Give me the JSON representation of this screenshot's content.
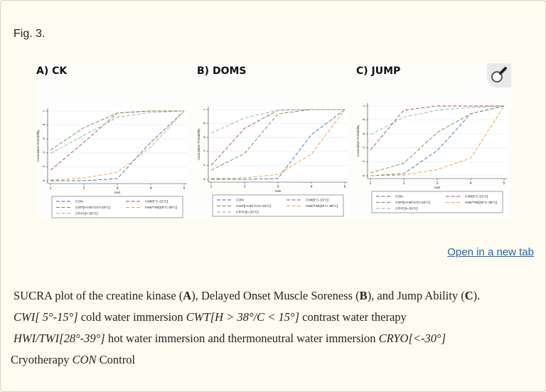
{
  "figure_label": "Fig. 3.",
  "open_link": "Open in a new tab",
  "caption": {
    "p1": "SUCRA plot of the creatine kinase (",
    "A": "A",
    "p2": "), Delayed Onset Muscle Soreness (",
    "B": "B",
    "p3": "), and Jump Ability (",
    "C": "C",
    "p4": ").",
    "i1": "CWI[ 5°-15°]",
    "t1": " cold water immersion ",
    "i2": "CWT[H > 38°/C < 15°]",
    "t2": " contrast water therapy ",
    "i3": "HWI/TWI[28°-39°]",
    "t3": " hot water immersion and thermoneutral water immersion ",
    "i4": "CRYO[<-30°]",
    "t4": " Cryotherapy ",
    "i5": "CON",
    "t5": " Control"
  },
  "zoom_icon": "magnifier-icon",
  "chart_data": [
    {
      "type": "line",
      "title": "A) CK",
      "xlabel": "rank",
      "ylabel": "Cumulative Probability",
      "x": [
        1,
        2,
        3,
        4,
        5
      ],
      "xticks": [
        "1",
        "2",
        "3",
        "4",
        "5"
      ],
      "yticks": [
        "0",
        ".2",
        ".4",
        ".6",
        ".8",
        "1"
      ],
      "ylim": [
        0,
        1
      ],
      "grid": true,
      "legend": "bottom",
      "series": [
        {
          "name": "CON",
          "color": "#3f6fa6",
          "values": [
            0,
            0,
            0.03,
            0.55,
            1
          ]
        },
        {
          "name": "CWI[5°C-15°C]",
          "color": "#a94a5c",
          "values": [
            0.15,
            0.55,
            0.97,
            1,
            1
          ]
        },
        {
          "name": "CWT[H>38°C/C<15°C]",
          "color": "#6c8b40",
          "values": [
            0.44,
            0.76,
            0.97,
            1,
            1
          ]
        },
        {
          "name": "HWI/TWI[28°C-39°C]",
          "color": "#f0a034",
          "values": [
            0.01,
            0.04,
            0.12,
            0.48,
            1
          ]
        },
        {
          "name": "CRYO[<-30°C]",
          "color": "#8fb2aa",
          "values": [
            0.39,
            0.65,
            0.91,
            0.98,
            1
          ]
        }
      ]
    },
    {
      "type": "line",
      "title": "B) DOMS",
      "xlabel": "rank",
      "ylabel": "Cumulative Probability",
      "x": [
        1,
        2,
        3,
        4,
        5
      ],
      "xticks": [
        "1",
        "2",
        "3",
        "4",
        "5"
      ],
      "yticks": [
        "0",
        ".2",
        ".4",
        ".6",
        ".8",
        "1"
      ],
      "ylim": [
        0,
        1
      ],
      "grid": true,
      "legend": "bottom",
      "series": [
        {
          "name": "CON",
          "color": "#3f6fa6",
          "values": [
            0,
            0,
            0.01,
            0.64,
            1
          ]
        },
        {
          "name": "CWI[5°C-15°C]",
          "color": "#a94a5c",
          "values": [
            0.2,
            0.73,
            0.99,
            1,
            1
          ]
        },
        {
          "name": "CWT[H>38°C/C<15°C]",
          "color": "#6c8b40",
          "values": [
            0.13,
            0.37,
            0.94,
            1,
            1
          ]
        },
        {
          "name": "HWI/TWI[28°C-39°C]",
          "color": "#f0a034",
          "values": [
            0.01,
            0.02,
            0.07,
            0.36,
            1
          ]
        },
        {
          "name": "CRYO[<-30°C]",
          "color": "#8fb2aa",
          "values": [
            0.66,
            0.88,
            0.99,
            1,
            1
          ]
        }
      ]
    },
    {
      "type": "line",
      "title": "C) JUMP",
      "xlabel": "rank",
      "ylabel": "Cumulative Probability",
      "x": [
        1,
        2,
        3,
        4,
        5
      ],
      "xticks": [
        "1",
        "2",
        "3",
        "4",
        "5"
      ],
      "yticks": [
        "0",
        ".2",
        ".4",
        ".6",
        ".8",
        "1"
      ],
      "ylim": [
        0,
        1
      ],
      "grid": true,
      "legend": "bottom",
      "series": [
        {
          "name": "CON",
          "color": "#3f6fa6",
          "values": [
            0,
            0.03,
            0.36,
            0.89,
            1
          ]
        },
        {
          "name": "CWI[5°C-15°C]",
          "color": "#a94a5c",
          "values": [
            0.37,
            0.94,
            1,
            1,
            1
          ]
        },
        {
          "name": "CWT[H>38°C/C<15°C]",
          "color": "#6c8b40",
          "values": [
            0.04,
            0.18,
            0.62,
            0.89,
            1
          ]
        },
        {
          "name": "HWI/TWI[28°C-39°C]",
          "color": "#f0a034",
          "values": [
            0,
            0.01,
            0.09,
            0.25,
            1
          ]
        },
        {
          "name": "CRYO[<-30°C]",
          "color": "#8fb2aa",
          "values": [
            0.59,
            0.84,
            0.94,
            0.98,
            1
          ]
        }
      ]
    }
  ]
}
